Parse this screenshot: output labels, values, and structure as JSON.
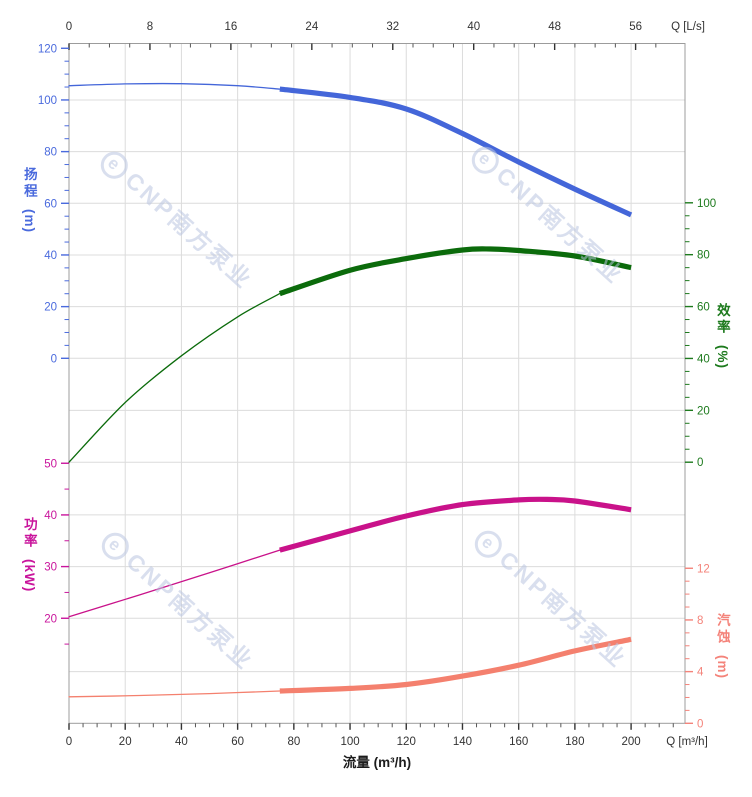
{
  "watermark": {
    "logo": "e",
    "text": "CNP南方泵业"
  },
  "chart_data": {
    "type": "line",
    "title": "",
    "xlabel": "流量 (m³/h)",
    "grid": true,
    "x_bottom": {
      "end_label": "Q [m³/h]",
      "ticks": [
        0,
        20,
        40,
        60,
        80,
        100,
        120,
        140,
        160,
        180,
        200
      ],
      "minor_step": 5,
      "range": [
        0,
        219
      ]
    },
    "x_top": {
      "end_label": "Q [L/s]",
      "ticks": [
        0,
        8,
        16,
        24,
        32,
        40,
        48,
        56
      ],
      "minor_step": 2,
      "ls_to_m3h": 3.6
    },
    "axes": {
      "head": {
        "title": "扬程",
        "unit": "(m)",
        "side": "left",
        "color": "#4a6add",
        "ticks": [
          120,
          100,
          80,
          60,
          40,
          20,
          0
        ],
        "minor_step": 5
      },
      "power": {
        "title": "功率",
        "unit": "(kW)",
        "side": "left",
        "color": "#c9159c",
        "ticks": [
          50,
          40,
          30,
          20
        ],
        "minor_step": 5
      },
      "efficiency": {
        "title": "效率",
        "unit": "(%)",
        "side": "right",
        "color": "#1d7a1d",
        "ticks": [
          100,
          80,
          60,
          40,
          20,
          0
        ],
        "minor_step": 5
      },
      "npsh": {
        "title": "汽蚀",
        "unit": "(m)",
        "side": "right",
        "color": "#f4837a",
        "ticks": [
          12,
          8,
          4,
          0
        ],
        "minor_step": 1
      }
    },
    "series": [
      {
        "name": "head",
        "axis": "head",
        "color": "#4466d9",
        "thick_from_q": 75,
        "points": [
          [
            0,
            105.5
          ],
          [
            20,
            106.2
          ],
          [
            40,
            106.3
          ],
          [
            60,
            105.5
          ],
          [
            75,
            104.2
          ],
          [
            100,
            101
          ],
          [
            120,
            96.5
          ],
          [
            140,
            87
          ],
          [
            160,
            76
          ],
          [
            180,
            65.5
          ],
          [
            200,
            55.5
          ]
        ]
      },
      {
        "name": "efficiency",
        "axis": "efficiency",
        "color": "#0b6b0b",
        "thick_from_q": 75,
        "points": [
          [
            0,
            0
          ],
          [
            20,
            23
          ],
          [
            40,
            41
          ],
          [
            60,
            56
          ],
          [
            75,
            65
          ],
          [
            100,
            74
          ],
          [
            120,
            78.5
          ],
          [
            140,
            81.8
          ],
          [
            150,
            82.2
          ],
          [
            160,
            81.6
          ],
          [
            180,
            79.5
          ],
          [
            200,
            75
          ]
        ]
      },
      {
        "name": "power",
        "axis": "power",
        "color": "#c9128a",
        "thick_from_q": 75,
        "points": [
          [
            0,
            20.3
          ],
          [
            25,
            24.5
          ],
          [
            50,
            28.8
          ],
          [
            75,
            33.2
          ],
          [
            100,
            36.9
          ],
          [
            120,
            39.8
          ],
          [
            140,
            42
          ],
          [
            160,
            42.9
          ],
          [
            170,
            43
          ],
          [
            180,
            42.7
          ],
          [
            200,
            41
          ]
        ]
      },
      {
        "name": "npsh",
        "axis": "npsh",
        "color": "#f4806e",
        "thick_from_q": 75,
        "points": [
          [
            0,
            2.05
          ],
          [
            25,
            2.15
          ],
          [
            50,
            2.3
          ],
          [
            75,
            2.5
          ],
          [
            100,
            2.7
          ],
          [
            120,
            3.0
          ],
          [
            140,
            3.65
          ],
          [
            160,
            4.5
          ],
          [
            180,
            5.6
          ],
          [
            200,
            6.5
          ]
        ]
      }
    ]
  }
}
